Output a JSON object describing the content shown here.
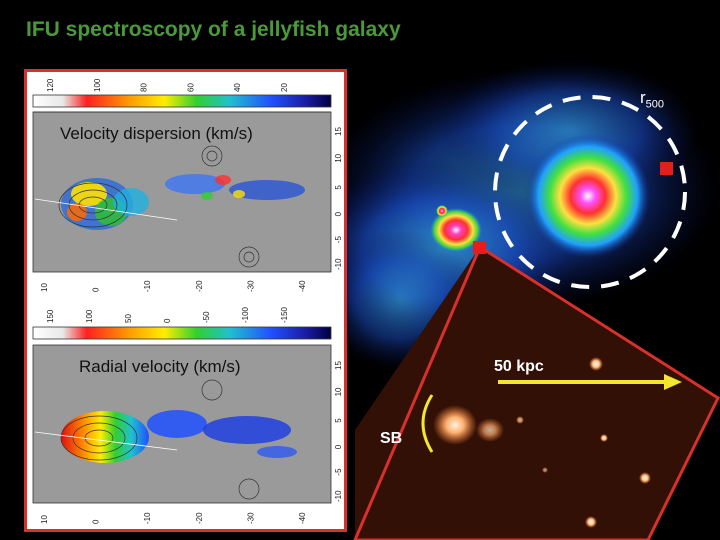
{
  "title": "IFU spectroscopy of a jellyfish galaxy",
  "labels": {
    "r500_main": "r",
    "r500_sub": "500",
    "scale_bar": "50 kpc",
    "sb": "SB"
  },
  "panels": {
    "velocity_dispersion": {
      "label": "Velocity dispersion (km/s)",
      "colorbar_ticks": [
        "120",
        "100",
        "80",
        "60",
        "40",
        "20"
      ],
      "y_ticks": [
        "15",
        "10",
        "5",
        "0",
        "-5",
        "-10"
      ],
      "x_ticks": [
        "10",
        "0",
        "-10",
        "-20",
        "-30",
        "-40"
      ]
    },
    "radial_velocity": {
      "label": "Radial velocity (km/s)",
      "colorbar_ticks": [
        "150",
        "100",
        "50",
        "0",
        "-50",
        "-100",
        "-150"
      ],
      "y_ticks": [
        "15",
        "10",
        "5",
        "0",
        "-5",
        "-10"
      ],
      "x_ticks": [
        "10",
        "0",
        "-10",
        "-20",
        "-30",
        "-40"
      ]
    }
  },
  "colors": {
    "title": "#4a9a3a",
    "frame": "#d8302a",
    "arrow": "#f3e62b",
    "circle": "#ffffff",
    "marker": "#e0201a"
  }
}
